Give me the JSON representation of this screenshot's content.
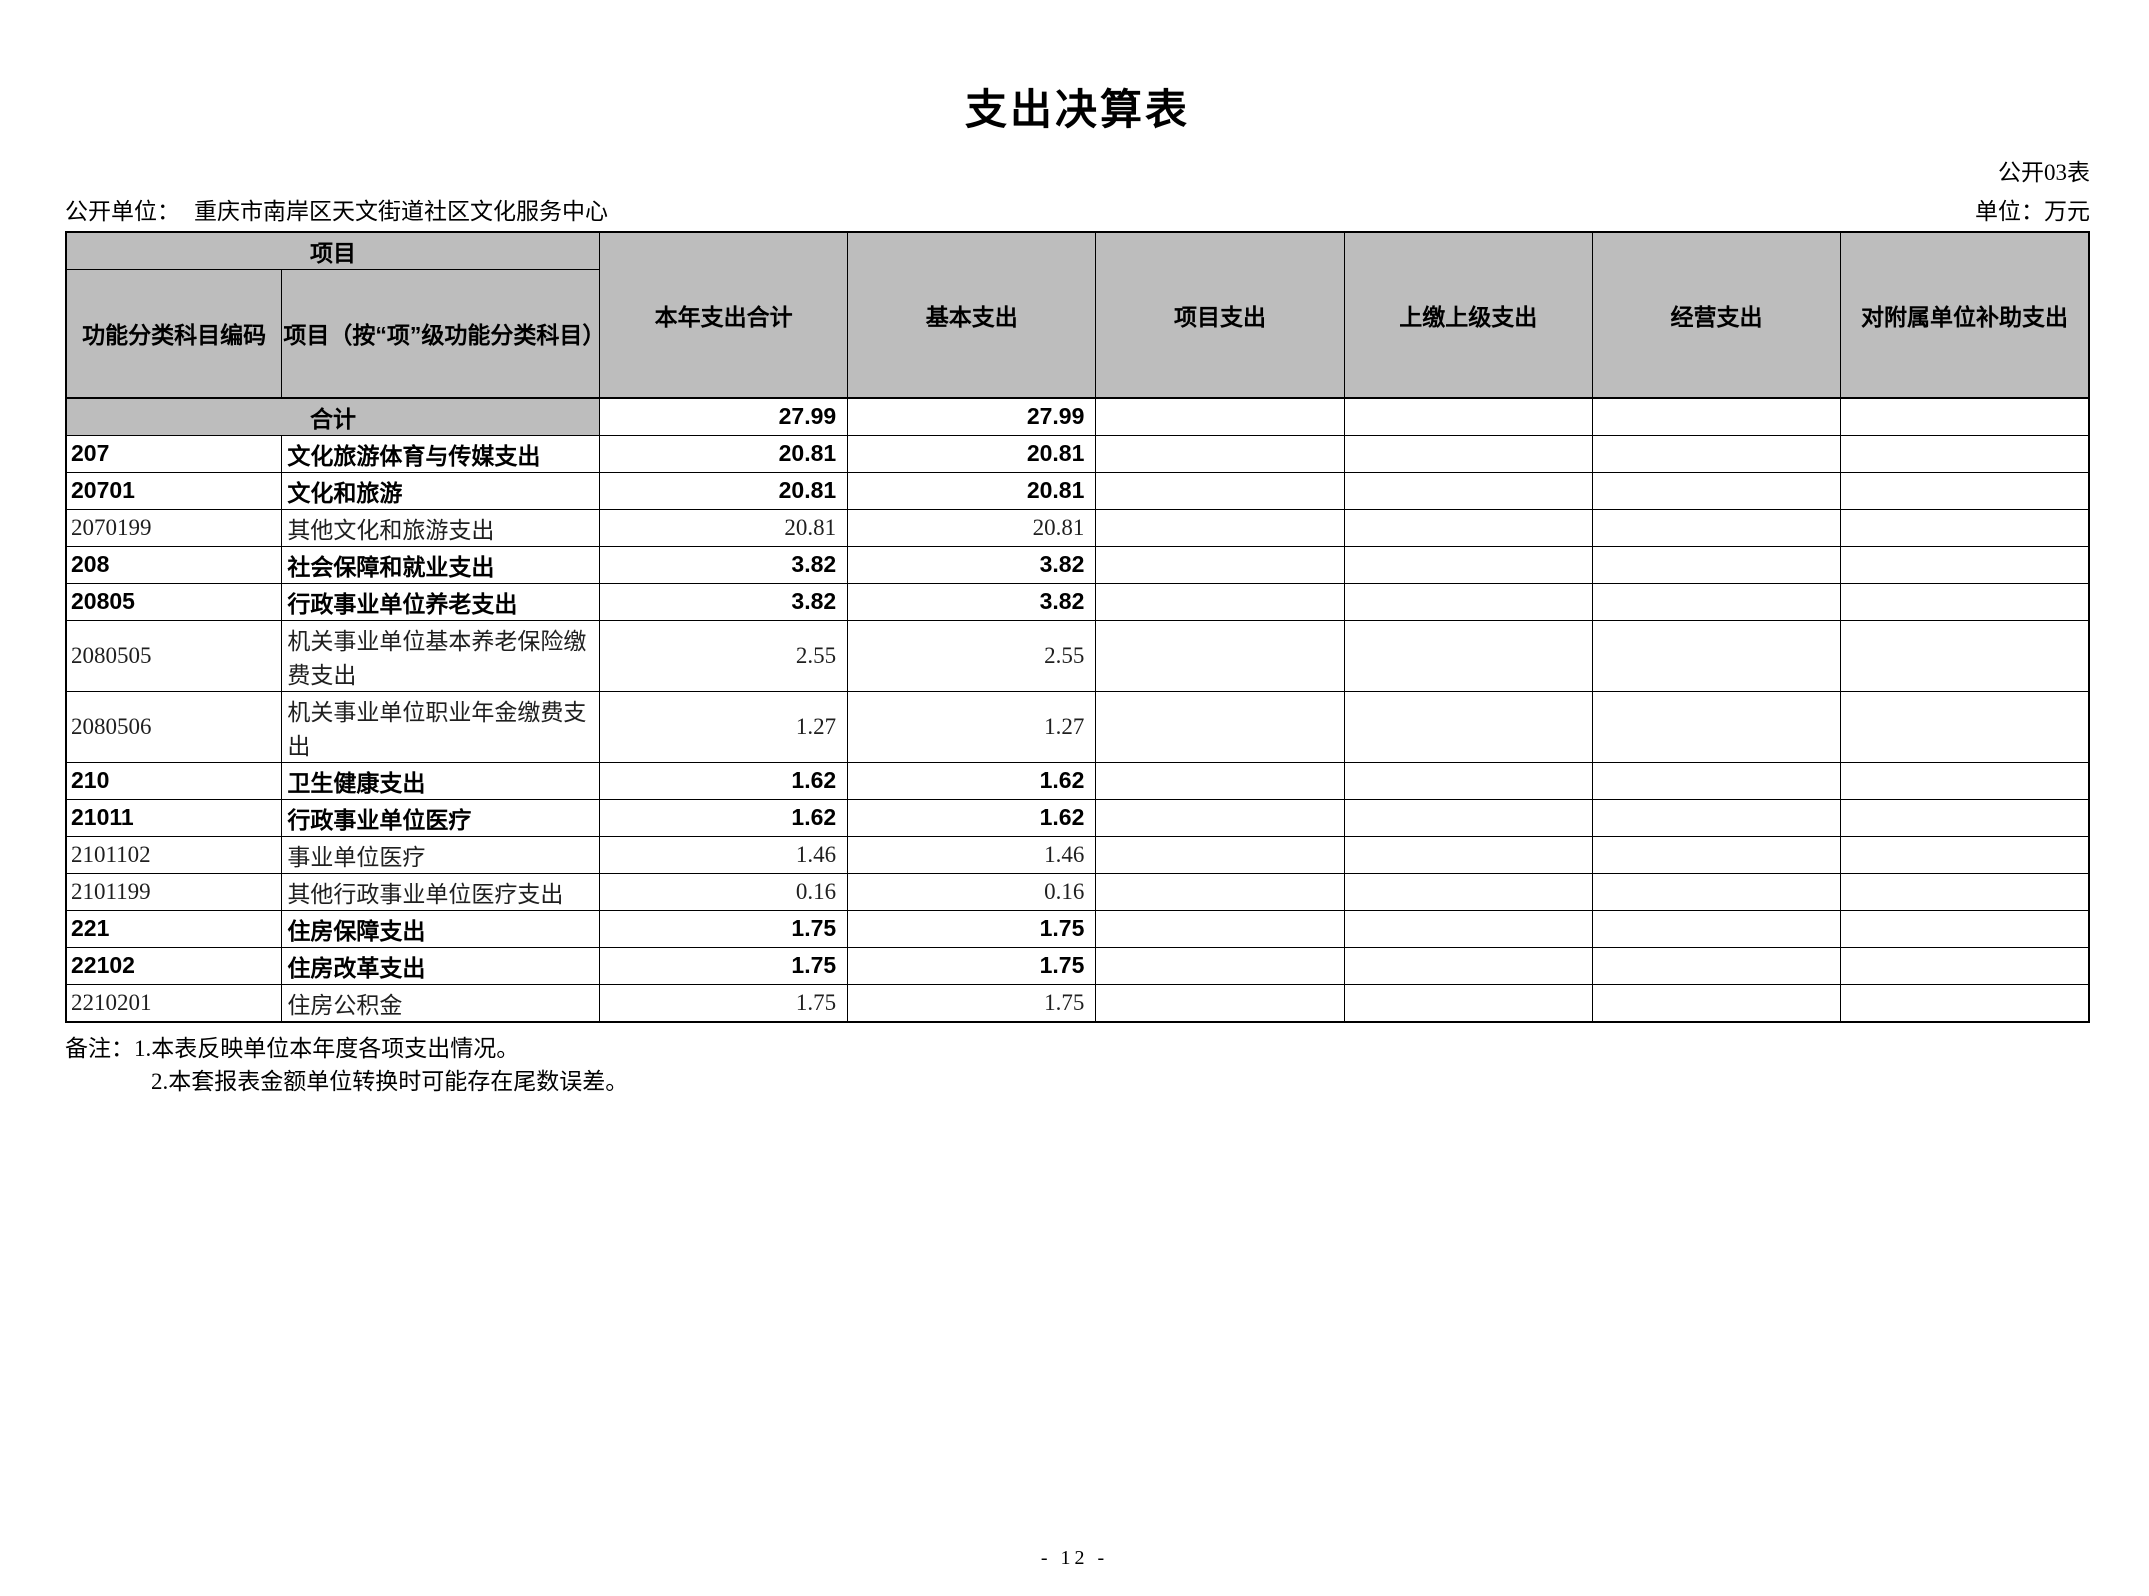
{
  "page": {
    "title": "支出决算表",
    "table_code": "公开03表",
    "org_label": "公开单位：",
    "org_name": "重庆市南岸区天文街道社区文化服务中心",
    "unit_label": "单位：万元",
    "page_number": "- 12 -"
  },
  "colors": {
    "header_bg": "#bdbdbd",
    "border": "#000000"
  },
  "table": {
    "header": {
      "group_label": "项目",
      "col_code": "功能分类科目编码",
      "col_item": "项目（按“项”级功能分类科目）",
      "col_total": "本年支出合计",
      "col_basic": "基本支出",
      "col_project": "项目支出",
      "col_upper": "上缴上级支出",
      "col_operating": "经营支出",
      "col_subsidy": "对附属单位补助支出"
    },
    "total_row": {
      "label": "合计",
      "total": "27.99",
      "basic": "27.99",
      "project": "",
      "upper": "",
      "operating": "",
      "subsidy": ""
    },
    "rows": [
      {
        "code": "207",
        "name": "文化旅游体育与传媒支出",
        "total": "20.81",
        "basic": "20.81",
        "project": "",
        "upper": "",
        "operating": "",
        "subsidy": "",
        "bold": true
      },
      {
        "code": "20701",
        "name": "文化和旅游",
        "total": "20.81",
        "basic": "20.81",
        "project": "",
        "upper": "",
        "operating": "",
        "subsidy": "",
        "bold": true
      },
      {
        "code": "2070199",
        "name": "其他文化和旅游支出",
        "total": "20.81",
        "basic": "20.81",
        "project": "",
        "upper": "",
        "operating": "",
        "subsidy": "",
        "bold": false
      },
      {
        "code": "208",
        "name": "社会保障和就业支出",
        "total": "3.82",
        "basic": "3.82",
        "project": "",
        "upper": "",
        "operating": "",
        "subsidy": "",
        "bold": true
      },
      {
        "code": "20805",
        "name": "行政事业单位养老支出",
        "total": "3.82",
        "basic": "3.82",
        "project": "",
        "upper": "",
        "operating": "",
        "subsidy": "",
        "bold": true
      },
      {
        "code": "2080505",
        "name": "机关事业单位基本养老保险缴费支出",
        "total": "2.55",
        "basic": "2.55",
        "project": "",
        "upper": "",
        "operating": "",
        "subsidy": "",
        "bold": false
      },
      {
        "code": "2080506",
        "name": "机关事业单位职业年金缴费支出",
        "total": "1.27",
        "basic": "1.27",
        "project": "",
        "upper": "",
        "operating": "",
        "subsidy": "",
        "bold": false
      },
      {
        "code": "210",
        "name": "卫生健康支出",
        "total": "1.62",
        "basic": "1.62",
        "project": "",
        "upper": "",
        "operating": "",
        "subsidy": "",
        "bold": true
      },
      {
        "code": "21011",
        "name": "行政事业单位医疗",
        "total": "1.62",
        "basic": "1.62",
        "project": "",
        "upper": "",
        "operating": "",
        "subsidy": "",
        "bold": true
      },
      {
        "code": "2101102",
        "name": "事业单位医疗",
        "total": "1.46",
        "basic": "1.46",
        "project": "",
        "upper": "",
        "operating": "",
        "subsidy": "",
        "bold": false
      },
      {
        "code": "2101199",
        "name": "其他行政事业单位医疗支出",
        "total": "0.16",
        "basic": "0.16",
        "project": "",
        "upper": "",
        "operating": "",
        "subsidy": "",
        "bold": false
      },
      {
        "code": "221",
        "name": "住房保障支出",
        "total": "1.75",
        "basic": "1.75",
        "project": "",
        "upper": "",
        "operating": "",
        "subsidy": "",
        "bold": true
      },
      {
        "code": "22102",
        "name": "住房改革支出",
        "total": "1.75",
        "basic": "1.75",
        "project": "",
        "upper": "",
        "operating": "",
        "subsidy": "",
        "bold": true
      },
      {
        "code": "2210201",
        "name": "住房公积金",
        "total": "1.75",
        "basic": "1.75",
        "project": "",
        "upper": "",
        "operating": "",
        "subsidy": "",
        "bold": false
      }
    ]
  },
  "notes": {
    "label": "备注：",
    "line1": "1.本表反映单位本年度各项支出情况。",
    "line2": "2.本套报表金额单位转换时可能存在尾数误差。"
  }
}
